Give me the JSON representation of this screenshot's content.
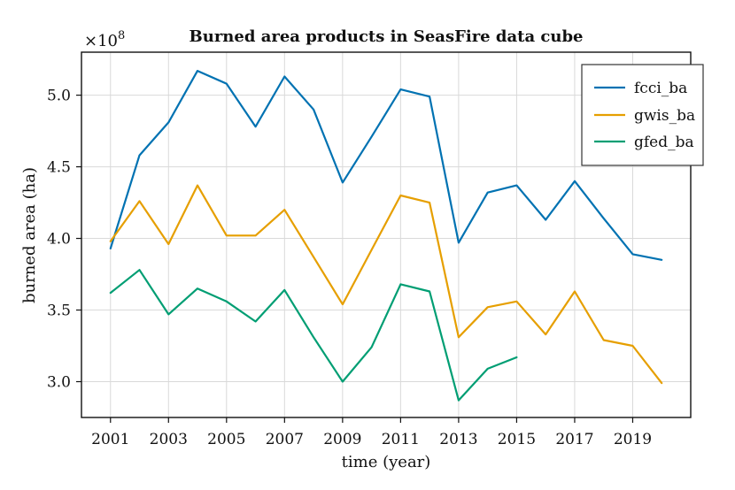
{
  "chart_data": {
    "type": "line",
    "title": "Burned area products in SeasFire data cube",
    "xlabel": "time (year)",
    "ylabel": "burned area (ha)",
    "y_multiplier_label": "×10",
    "y_multiplier_exponent": "8",
    "xlim": [
      2000,
      2021
    ],
    "ylim": [
      2.75,
      5.3
    ],
    "x_ticks": [
      2001,
      2003,
      2005,
      2007,
      2009,
      2011,
      2013,
      2015,
      2017,
      2019
    ],
    "y_ticks": [
      3.0,
      3.5,
      4.0,
      4.5,
      5.0
    ],
    "y_tick_labels": [
      "3.0",
      "3.5",
      "4.0",
      "4.5",
      "5.0"
    ],
    "grid": true,
    "legend_position": "top-right",
    "series": [
      {
        "name": "fcci_ba",
        "color": "#0072b2",
        "x": [
          2001,
          2002,
          2003,
          2004,
          2005,
          2006,
          2007,
          2008,
          2009,
          2010,
          2011,
          2012,
          2013,
          2014,
          2015,
          2016,
          2017,
          2018,
          2019,
          2020
        ],
        "values": [
          3.93,
          4.58,
          4.81,
          5.17,
          5.08,
          4.78,
          5.13,
          4.9,
          4.39,
          4.71,
          5.04,
          4.99,
          3.97,
          4.32,
          4.37,
          4.13,
          4.4,
          4.14,
          3.89,
          3.85
        ]
      },
      {
        "name": "gwis_ba",
        "color": "#e69f00",
        "x": [
          2001,
          2002,
          2003,
          2004,
          2005,
          2006,
          2007,
          2008,
          2009,
          2010,
          2011,
          2012,
          2013,
          2014,
          2015,
          2016,
          2017,
          2018,
          2019,
          2020
        ],
        "values": [
          3.98,
          4.26,
          3.96,
          4.37,
          4.02,
          4.02,
          4.2,
          3.87,
          3.54,
          3.92,
          4.3,
          4.25,
          3.31,
          3.52,
          3.56,
          3.33,
          3.63,
          3.29,
          3.25,
          2.99
        ]
      },
      {
        "name": "gfed_ba",
        "color": "#009e73",
        "x": [
          2001,
          2002,
          2003,
          2004,
          2005,
          2006,
          2007,
          2008,
          2009,
          2010,
          2011,
          2012,
          2013,
          2014,
          2015
        ],
        "values": [
          3.62,
          3.78,
          3.47,
          3.65,
          3.56,
          3.42,
          3.64,
          3.31,
          3.0,
          3.24,
          3.68,
          3.63,
          2.87,
          3.09,
          3.17
        ]
      }
    ]
  }
}
